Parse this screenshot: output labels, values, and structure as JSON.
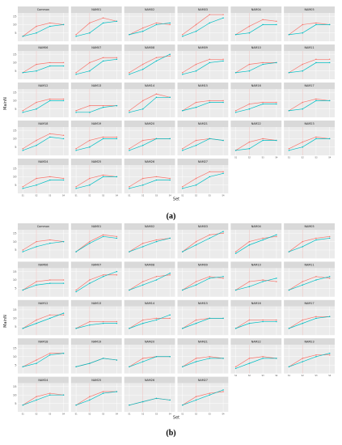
{
  "chart_data": [
    {
      "type": "line",
      "panel_label": "(a)",
      "xlabel": "Set",
      "ylabel": "MainN",
      "x": [
        "S1",
        "S2",
        "S3",
        "S4"
      ],
      "ylim": [
        0,
        17
      ],
      "yticks": [
        5,
        10,
        15
      ],
      "grid": true,
      "colors": [
        "#f8766d",
        "#00bfc4"
      ],
      "facets": [
        {
          "name": "Common",
          "series": [
            [
              3,
              9,
              11,
              10
            ],
            [
              3,
              5,
              9,
              10
            ]
          ]
        },
        {
          "name": "NAM01",
          "series": [
            [
              4,
              11,
              14,
              12
            ],
            [
              3,
              5,
              11,
              12
            ]
          ]
        },
        {
          "name": "NAM02",
          "series": [
            [
              4,
              8,
              11,
              10
            ],
            [
              4,
              6,
              10,
              11
            ]
          ]
        },
        {
          "name": "NAM03",
          "series": [
            [
              4,
              10,
              16,
              16
            ],
            [
              3,
              6,
              11,
              14
            ]
          ]
        },
        {
          "name": "NAM04",
          "series": [
            [
              4,
              9,
              13,
              12
            ],
            [
              4,
              5,
              10,
              10
            ]
          ]
        },
        {
          "name": "NAM05",
          "series": [
            [
              4,
              10,
              11,
              10
            ],
            [
              4,
              5,
              10,
              10
            ]
          ]
        },
        {
          "name": "NAM06",
          "series": [
            [
              4,
              9,
              10,
              10
            ],
            [
              4,
              5,
              8,
              8
            ]
          ]
        },
        {
          "name": "NAM07",
          "series": [
            [
              4,
              10,
              13,
              13
            ],
            [
              3,
              5,
              11,
              12
            ]
          ]
        },
        {
          "name": "NAM08",
          "series": [
            [
              4,
              9,
              13,
              14
            ],
            [
              3,
              6,
              11,
              15
            ]
          ]
        },
        {
          "name": "NAM09",
          "series": [
            [
              4,
              9,
              12,
              12
            ],
            [
              3,
              5,
              10,
              11
            ]
          ]
        },
        {
          "name": "NAM10",
          "series": [
            [
              4,
              9,
              10,
              10
            ],
            [
              4,
              5,
              9,
              10
            ]
          ]
        },
        {
          "name": "NAM11",
          "series": [
            [
              4,
              9,
              12,
              12
            ],
            [
              4,
              5,
              10,
              10
            ]
          ]
        },
        {
          "name": "NAM12",
          "series": [
            [
              4,
              9,
              11,
              11
            ],
            [
              3,
              5,
              10,
              10
            ]
          ]
        },
        {
          "name": "NAM13",
          "series": [
            [
              4,
              7,
              7,
              7
            ],
            [
              3,
              3,
              6,
              7
            ]
          ]
        },
        {
          "name": "NAM14",
          "series": [
            [
              4,
              10,
              14,
              12
            ],
            [
              3,
              5,
              12,
              12
            ]
          ]
        },
        {
          "name": "NAM15",
          "series": [
            [
              4,
              9,
              10,
              10
            ],
            [
              4,
              6,
              9,
              9
            ]
          ]
        },
        {
          "name": "NAM16",
          "series": [
            [
              4,
              8,
              9,
              9
            ],
            [
              3,
              5,
              8,
              8
            ]
          ]
        },
        {
          "name": "NAM17",
          "series": [
            [
              4,
              9,
              11,
              10
            ],
            [
              4,
              5,
              10,
              10
            ]
          ]
        },
        {
          "name": "NAM18",
          "series": [
            [
              4,
              9,
              13,
              12
            ],
            [
              3,
              6,
              11,
              10
            ]
          ]
        },
        {
          "name": "NAM19",
          "series": [
            [
              4,
              9,
              11,
              11
            ],
            [
              3,
              5,
              10,
              10
            ]
          ]
        },
        {
          "name": "NAM20",
          "series": [
            [
              4,
              9,
              10,
              10
            ],
            [
              3,
              6,
              10,
              10
            ]
          ]
        },
        {
          "name": "NAM21",
          "series": [
            [
              4,
              9,
              10,
              9
            ],
            [
              3,
              6,
              10,
              9
            ]
          ]
        },
        {
          "name": "NAM22",
          "series": [
            [
              3,
              8,
              10,
              9
            ],
            [
              3,
              4,
              9,
              9
            ]
          ]
        },
        {
          "name": "NAM23",
          "series": [
            [
              4,
              8,
              11,
              10
            ],
            [
              3,
              5,
              10,
              10
            ]
          ]
        },
        {
          "name": "NAM24",
          "series": [
            [
              4,
              9,
              10,
              9
            ],
            [
              3,
              5,
              8,
              8
            ]
          ]
        },
        {
          "name": "NAM25",
          "series": [
            [
              4,
              9,
              11,
              10
            ],
            [
              3,
              5,
              10,
              10
            ]
          ]
        },
        {
          "name": "NAM26",
          "series": [
            [
              4,
              9,
              10,
              9
            ],
            [
              3,
              5,
              8,
              8
            ]
          ]
        },
        {
          "name": "NAM27",
          "series": [
            [
              4,
              9,
              13,
              13
            ],
            [
              3,
              5,
              10,
              12
            ]
          ]
        }
      ]
    },
    {
      "type": "line",
      "panel_label": "(b)",
      "xlabel": "Set",
      "ylabel": "MainN",
      "x": [
        "S1",
        "S2",
        "S3",
        "S4"
      ],
      "ylim": [
        0,
        17
      ],
      "yticks": [
        5,
        10,
        15
      ],
      "grid": true,
      "colors": [
        "#f8766d",
        "#00bfc4"
      ],
      "facets": [
        {
          "name": "Common",
          "series": [
            [
              5,
              10,
              11,
              10
            ],
            [
              4,
              7,
              9,
              10
            ]
          ]
        },
        {
          "name": "NAM01",
          "series": [
            [
              4,
              10,
              14,
              13
            ],
            [
              4,
              9,
              13,
              12
            ]
          ]
        },
        {
          "name": "NAM02",
          "series": [
            [
              4,
              9,
              11,
              12
            ],
            [
              4,
              7,
              10,
              12
            ]
          ]
        },
        {
          "name": "NAM03",
          "series": [
            [
              4,
              10,
              14,
              15
            ],
            [
              4,
              8,
              12,
              16
            ]
          ]
        },
        {
          "name": "NAM04",
          "series": [
            [
              4,
              10,
              12,
              13
            ],
            [
              3,
              8,
              11,
              14
            ]
          ]
        },
        {
          "name": "NAM05",
          "series": [
            [
              4,
              10,
              12,
              13
            ],
            [
              4,
              7,
              11,
              12
            ]
          ]
        },
        {
          "name": "NAM06",
          "series": [
            [
              4,
              9,
              10,
              10
            ],
            [
              4,
              7,
              8,
              8
            ]
          ]
        },
        {
          "name": "NAM07",
          "series": [
            [
              4,
              10,
              13,
              13
            ],
            [
              3,
              8,
              12,
              15
            ]
          ]
        },
        {
          "name": "NAM08",
          "series": [
            [
              4,
              9,
              12,
              13
            ],
            [
              4,
              7,
              10,
              14
            ]
          ]
        },
        {
          "name": "NAM09",
          "series": [
            [
              4,
              9,
              12,
              11
            ],
            [
              4,
              7,
              11,
              12
            ]
          ]
        },
        {
          "name": "NAM10",
          "series": [
            [
              4,
              9,
              10,
              9
            ],
            [
              4,
              6,
              9,
              11
            ]
          ]
        },
        {
          "name": "NAM11",
          "series": [
            [
              4,
              9,
              12,
              11
            ],
            [
              4,
              7,
              10,
              12
            ]
          ]
        },
        {
          "name": "NAM12",
          "series": [
            [
              4,
              9,
              12,
              12
            ],
            [
              4,
              7,
              10,
              13
            ]
          ]
        },
        {
          "name": "NAM13",
          "series": [
            [
              4,
              8,
              8,
              8
            ],
            [
              4,
              6,
              7,
              7
            ]
          ]
        },
        {
          "name": "NAM14",
          "series": [
            [
              4,
              9,
              10,
              10
            ],
            [
              4,
              7,
              9,
              12
            ]
          ]
        },
        {
          "name": "NAM15",
          "series": [
            [
              4,
              9,
              10,
              10
            ],
            [
              4,
              7,
              10,
              10
            ]
          ]
        },
        {
          "name": "NAM16",
          "series": [
            [
              4,
              9,
              9,
              9
            ],
            [
              4,
              7,
              8,
              8
            ]
          ]
        },
        {
          "name": "NAM17",
          "series": [
            [
              4,
              9,
              11,
              11
            ],
            [
              4,
              7,
              10,
              11
            ]
          ]
        },
        {
          "name": "NAM18",
          "series": [
            [
              4,
              8,
              12,
              12
            ],
            [
              4,
              6,
              11,
              12
            ]
          ]
        },
        {
          "name": "NAM19",
          "series": [
            [
              4,
              6,
              9,
              8
            ],
            [
              4,
              6,
              9,
              8
            ]
          ]
        },
        {
          "name": "NAM20",
          "series": [
            [
              4,
              9,
              10,
              10
            ],
            [
              4,
              7,
              10,
              10
            ]
          ]
        },
        {
          "name": "NAM21",
          "series": [
            [
              4,
              9,
              10,
              9
            ],
            [
              4,
              7,
              9,
              9
            ]
          ]
        },
        {
          "name": "NAM22",
          "series": [
            [
              4,
              9,
              10,
              9
            ],
            [
              3,
              6,
              9,
              9
            ]
          ]
        },
        {
          "name": "NAM23",
          "series": [
            [
              4,
              9,
              11,
              11
            ],
            [
              4,
              7,
              10,
              12
            ]
          ]
        },
        {
          "name": "NAM24",
          "series": [
            [
              4,
              9,
              11,
              10
            ],
            [
              4,
              7,
              10,
              10
            ]
          ]
        },
        {
          "name": "NAM25",
          "series": [
            [
              4,
              9,
              12,
              12
            ],
            [
              4,
              7,
              11,
              12
            ]
          ]
        },
        {
          "name": "NAM26",
          "series": [
            [
              4,
              6,
              8,
              7
            ],
            [
              4,
              6,
              8,
              7
            ]
          ]
        },
        {
          "name": "NAM27",
          "series": [
            [
              4,
              9,
              11,
              12
            ],
            [
              4,
              7,
              10,
              13
            ]
          ]
        }
      ]
    }
  ]
}
